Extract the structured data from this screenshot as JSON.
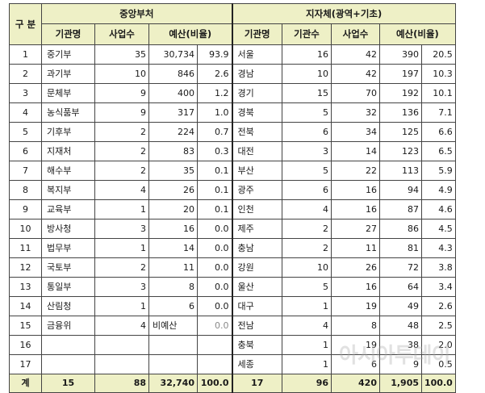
{
  "headers": {
    "group": "구 분",
    "central": "중앙부처",
    "local": "지자체(광역+기초)",
    "central_cols": [
      "기관명",
      "사업수",
      "예산(비율)"
    ],
    "local_cols": [
      "기관명",
      "기관수",
      "사업수",
      "예산(비율)"
    ]
  },
  "rows": [
    {
      "no": "1",
      "c_name": "중기부",
      "c_proj": "35",
      "c_budget": "30,734",
      "c_ratio": "93.9",
      "l_name": "서울",
      "l_inst": "16",
      "l_proj": "42",
      "l_budget": "390",
      "l_ratio": "20.5"
    },
    {
      "no": "2",
      "c_name": "과기부",
      "c_proj": "10",
      "c_budget": "846",
      "c_ratio": "2.6",
      "l_name": "경남",
      "l_inst": "10",
      "l_proj": "42",
      "l_budget": "197",
      "l_ratio": "10.3"
    },
    {
      "no": "3",
      "c_name": "문체부",
      "c_proj": "9",
      "c_budget": "400",
      "c_ratio": "1.2",
      "l_name": "경기",
      "l_inst": "15",
      "l_proj": "70",
      "l_budget": "192",
      "l_ratio": "10.1"
    },
    {
      "no": "4",
      "c_name": "농식품부",
      "c_proj": "9",
      "c_budget": "317",
      "c_ratio": "1.0",
      "l_name": "경북",
      "l_inst": "5",
      "l_proj": "32",
      "l_budget": "136",
      "l_ratio": "7.1"
    },
    {
      "no": "5",
      "c_name": "기후부",
      "c_proj": "2",
      "c_budget": "224",
      "c_ratio": "0.7",
      "l_name": "전북",
      "l_inst": "6",
      "l_proj": "34",
      "l_budget": "125",
      "l_ratio": "6.6"
    },
    {
      "no": "6",
      "c_name": "지재처",
      "c_proj": "2",
      "c_budget": "83",
      "c_ratio": "0.3",
      "l_name": "대전",
      "l_inst": "3",
      "l_proj": "14",
      "l_budget": "123",
      "l_ratio": "6.5"
    },
    {
      "no": "7",
      "c_name": "해수부",
      "c_proj": "2",
      "c_budget": "35",
      "c_ratio": "0.1",
      "l_name": "부산",
      "l_inst": "5",
      "l_proj": "22",
      "l_budget": "113",
      "l_ratio": "5.9"
    },
    {
      "no": "8",
      "c_name": "복지부",
      "c_proj": "4",
      "c_budget": "26",
      "c_ratio": "0.1",
      "l_name": "광주",
      "l_inst": "6",
      "l_proj": "16",
      "l_budget": "94",
      "l_ratio": "4.9"
    },
    {
      "no": "9",
      "c_name": "교육부",
      "c_proj": "1",
      "c_budget": "20",
      "c_ratio": "0.1",
      "l_name": "인천",
      "l_inst": "4",
      "l_proj": "16",
      "l_budget": "87",
      "l_ratio": "4.6"
    },
    {
      "no": "10",
      "c_name": "방사청",
      "c_proj": "3",
      "c_budget": "16",
      "c_ratio": "0.0",
      "l_name": "제주",
      "l_inst": "2",
      "l_proj": "27",
      "l_budget": "86",
      "l_ratio": "4.5"
    },
    {
      "no": "11",
      "c_name": "법무부",
      "c_proj": "1",
      "c_budget": "14",
      "c_ratio": "0.0",
      "l_name": "충남",
      "l_inst": "2",
      "l_proj": "11",
      "l_budget": "81",
      "l_ratio": "4.3"
    },
    {
      "no": "12",
      "c_name": "국토부",
      "c_proj": "2",
      "c_budget": "11",
      "c_ratio": "0.0",
      "l_name": "강원",
      "l_inst": "10",
      "l_proj": "26",
      "l_budget": "72",
      "l_ratio": "3.8"
    },
    {
      "no": "13",
      "c_name": "통일부",
      "c_proj": "3",
      "c_budget": "8",
      "c_ratio": "0.0",
      "l_name": "울산",
      "l_inst": "5",
      "l_proj": "16",
      "l_budget": "64",
      "l_ratio": "3.4"
    },
    {
      "no": "14",
      "c_name": "산림청",
      "c_proj": "1",
      "c_budget": "6",
      "c_ratio": "0.0",
      "l_name": "대구",
      "l_inst": "1",
      "l_proj": "19",
      "l_budget": "49",
      "l_ratio": "2.6"
    },
    {
      "no": "15",
      "c_name": "금융위",
      "c_proj": "4",
      "c_budget": "비예산",
      "c_ratio": "0.0",
      "l_name": "전남",
      "l_inst": "4",
      "l_proj": "8",
      "l_budget": "48",
      "l_ratio": "2.5"
    },
    {
      "no": "16",
      "c_name": "",
      "c_proj": "",
      "c_budget": "",
      "c_ratio": "",
      "l_name": "충북",
      "l_inst": "1",
      "l_proj": "19",
      "l_budget": "38",
      "l_ratio": "2.0"
    },
    {
      "no": "17",
      "c_name": "",
      "c_proj": "",
      "c_budget": "",
      "c_ratio": "",
      "l_name": "세종",
      "l_inst": "1",
      "l_proj": "6",
      "l_budget": "9",
      "l_ratio": "0.5"
    }
  ],
  "total": {
    "label": "계",
    "c_name": "15",
    "c_proj": "88",
    "c_budget": "32,740",
    "c_ratio": "100.0",
    "l_name": "17",
    "l_inst": "96",
    "l_proj": "420",
    "l_budget": "1,905",
    "l_ratio": "100.0"
  },
  "watermark": "아시아투데이"
}
